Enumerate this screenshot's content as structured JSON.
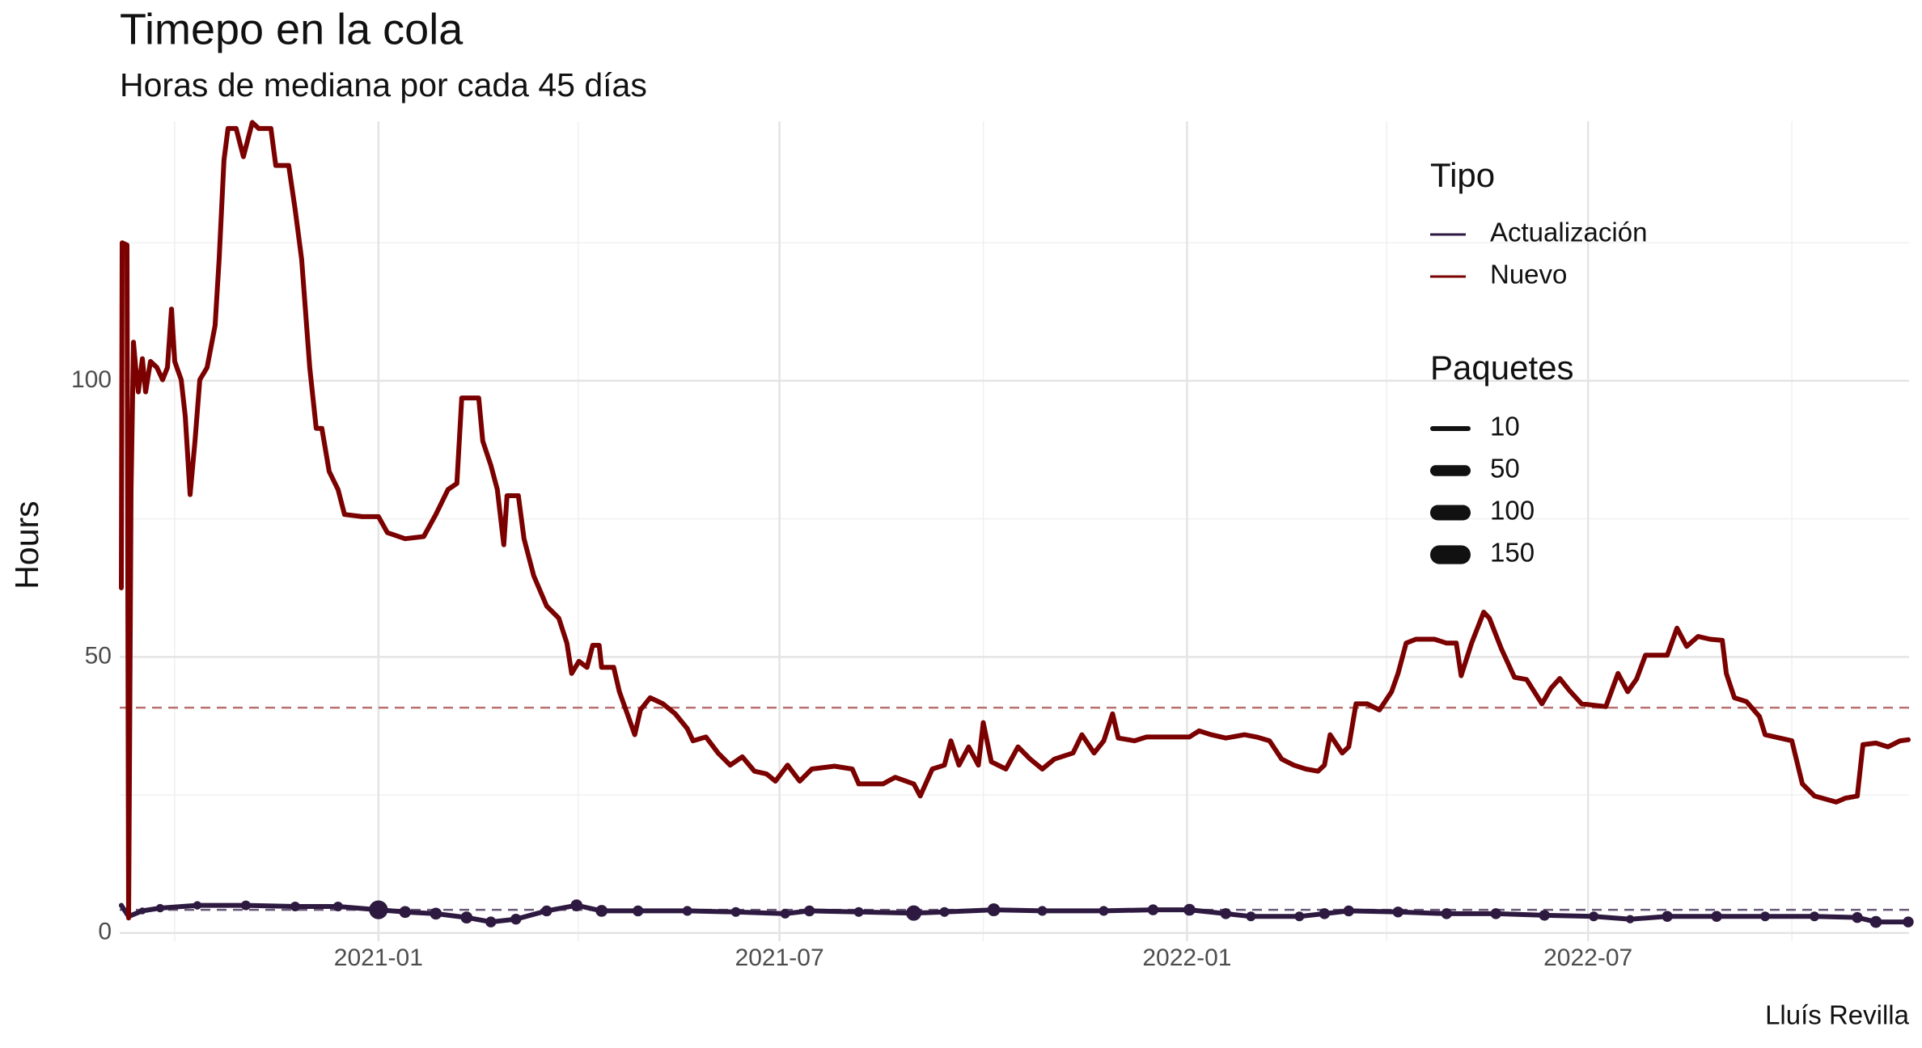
{
  "chart_data": {
    "type": "line",
    "title": "Timepo en la cola",
    "subtitle": "Horas de mediana por cada 45 días",
    "y_label": "Hours",
    "caption": "Lluís Revilla",
    "xlim": [
      2020.68,
      2022.893
    ],
    "xticks": [
      {
        "value": 2021.0,
        "label": "2021-01"
      },
      {
        "value": 2021.496,
        "label": "2021-07"
      },
      {
        "value": 2022.0,
        "label": "2022-01"
      },
      {
        "value": 2022.496,
        "label": "2022-07"
      }
    ],
    "xminor": [
      2020.748,
      2021.247,
      2021.748,
      2022.247,
      2022.748
    ],
    "ylim": [
      -1.5,
      147
    ],
    "yticks": [
      0,
      50,
      100
    ],
    "yminor": [
      25,
      75,
      125
    ],
    "grid": true,
    "legend_title": "Tipo",
    "size_legend": {
      "title": "Paquetes",
      "values": [
        10,
        50,
        100,
        150
      ]
    },
    "reference_lines": [
      {
        "value": 40.8,
        "color": "#b87070"
      },
      {
        "value": 4.2,
        "color": "#6a5a78"
      }
    ],
    "series": [
      {
        "name": "Actualización",
        "color": "#2e1a40",
        "x": [
          2020.682,
          2020.691,
          2020.708,
          2020.73,
          2020.776,
          2020.836,
          2020.897,
          2020.95,
          2021.0,
          2021.033,
          2021.071,
          2021.109,
          2021.139,
          2021.17,
          2021.208,
          2021.245,
          2021.276,
          2021.321,
          2021.382,
          2021.442,
          2021.503,
          2021.533,
          2021.594,
          2021.662,
          2021.7,
          2021.761,
          2021.821,
          2021.897,
          2021.958,
          2022.003,
          2022.048,
          2022.079,
          2022.139,
          2022.17,
          2022.2,
          2022.261,
          2022.321,
          2022.382,
          2022.442,
          2022.503,
          2022.548,
          2022.594,
          2022.655,
          2022.715,
          2022.776,
          2022.829,
          2022.852,
          2022.892
        ],
        "values": [
          5,
          3,
          4,
          4.5,
          5,
          5,
          4.8,
          4.8,
          4.2,
          3.8,
          3.5,
          2.8,
          2,
          2.5,
          4,
          5,
          4,
          4,
          4,
          3.8,
          3.5,
          4,
          3.8,
          3.6,
          3.8,
          4.2,
          4,
          4,
          4.2,
          4.2,
          3.5,
          3,
          3,
          3.5,
          4,
          3.8,
          3.5,
          3.5,
          3.2,
          3,
          2.5,
          3,
          3,
          3,
          3,
          2.8,
          2,
          2
        ],
        "sizes": [
          10,
          10,
          20,
          30,
          30,
          40,
          40,
          40,
          150,
          60,
          60,
          60,
          50,
          50,
          50,
          60,
          60,
          50,
          40,
          40,
          40,
          50,
          40,
          100,
          40,
          70,
          40,
          40,
          50,
          60,
          50,
          40,
          40,
          50,
          50,
          50,
          50,
          50,
          50,
          40,
          30,
          50,
          50,
          40,
          40,
          50,
          60,
          50
        ]
      },
      {
        "name": "Nuevo",
        "color": "#7b0000",
        "x": [
          2020.682,
          2020.683,
          2020.689,
          2020.691,
          2020.694,
          2020.697,
          2020.7,
          2020.703,
          2020.708,
          2020.712,
          2020.718,
          2020.726,
          2020.733,
          2020.739,
          2020.744,
          2020.748,
          2020.756,
          2020.761,
          2020.767,
          2020.773,
          2020.779,
          2020.788,
          2020.798,
          2020.803,
          2020.809,
          2020.814,
          2020.824,
          2020.833,
          2020.844,
          2020.852,
          2020.867,
          2020.873,
          2020.889,
          2020.897,
          2020.905,
          2020.915,
          2020.923,
          2020.93,
          2020.939,
          2020.95,
          2020.958,
          2020.98,
          2021.0,
          2021.011,
          2021.033,
          2021.056,
          2021.071,
          2021.086,
          2021.097,
          2021.103,
          2021.124,
          2021.129,
          2021.139,
          2021.147,
          2021.155,
          2021.159,
          2021.173,
          2021.18,
          2021.192,
          2021.208,
          2021.223,
          2021.233,
          2021.239,
          2021.248,
          2021.258,
          2021.265,
          2021.273,
          2021.276,
          2021.291,
          2021.298,
          2021.309,
          2021.317,
          2021.324,
          2021.336,
          2021.352,
          2021.367,
          2021.382,
          2021.389,
          2021.405,
          2021.42,
          2021.435,
          2021.45,
          2021.465,
          2021.48,
          2021.491,
          2021.506,
          2021.521,
          2021.536,
          2021.564,
          2021.586,
          2021.594,
          2021.624,
          2021.639,
          2021.662,
          2021.67,
          2021.685,
          2021.7,
          2021.708,
          2021.718,
          2021.73,
          2021.742,
          2021.748,
          2021.758,
          2021.776,
          2021.791,
          2021.806,
          2021.821,
          2021.836,
          2021.859,
          2021.87,
          2021.885,
          2021.897,
          2021.908,
          2021.915,
          2021.935,
          2021.95,
          2021.973,
          2022.003,
          2022.015,
          2022.03,
          2022.048,
          2022.071,
          2022.086,
          2022.102,
          2022.117,
          2022.132,
          2022.147,
          2022.162,
          2022.17,
          2022.177,
          2022.192,
          2022.2,
          2022.209,
          2022.223,
          2022.238,
          2022.253,
          2022.261,
          2022.271,
          2022.283,
          2022.306,
          2022.321,
          2022.333,
          2022.339,
          2022.352,
          2022.367,
          2022.374,
          2022.389,
          2022.405,
          2022.42,
          2022.439,
          2022.45,
          2022.461,
          2022.473,
          2022.488,
          2022.518,
          2022.533,
          2022.545,
          2022.556,
          2022.567,
          2022.594,
          2022.606,
          2022.618,
          2022.632,
          2022.647,
          2022.662,
          2022.667,
          2022.677,
          2022.692,
          2022.708,
          2022.715,
          2022.733,
          2022.748,
          2022.761,
          2022.776,
          2022.803,
          2022.814,
          2022.829,
          2022.836,
          2022.852,
          2022.867,
          2022.882,
          2022.892
        ],
        "values": [
          62.5,
          125,
          124.6,
          2.7,
          80,
          107,
          102,
          98,
          104,
          98,
          103.5,
          102.4,
          100.2,
          102.4,
          113,
          103.5,
          100.2,
          93.6,
          79.4,
          89,
          100.2,
          102.4,
          110,
          122,
          140,
          145.7,
          145.7,
          140.6,
          146.8,
          145.7,
          145.7,
          139,
          139,
          131,
          122,
          102.4,
          91.4,
          91.4,
          83.6,
          80.3,
          75.8,
          75.4,
          75.4,
          72.5,
          71.4,
          71.8,
          75.8,
          80.3,
          81.4,
          96.9,
          96.9,
          89.1,
          84.7,
          80.3,
          70.3,
          79.2,
          79.2,
          71.4,
          64.7,
          59.2,
          57,
          52.5,
          47,
          49.2,
          48.1,
          52.1,
          52.1,
          48.1,
          48.1,
          43.7,
          39.2,
          35.9,
          40.4,
          42.6,
          41.5,
          39.7,
          37,
          34.8,
          35.5,
          32.6,
          30.4,
          31.9,
          29.3,
          28.8,
          27.5,
          30.4,
          27.5,
          29.7,
          30.2,
          29.7,
          27,
          27,
          28.2,
          27,
          24.8,
          29.7,
          30.4,
          34.8,
          30.4,
          33.7,
          30.4,
          38.1,
          31,
          29.7,
          33.7,
          31.5,
          29.7,
          31.5,
          32.6,
          35.9,
          32.6,
          34.8,
          39.7,
          35.3,
          34.8,
          35.5,
          35.5,
          35.5,
          36.6,
          35.9,
          35.3,
          35.9,
          35.5,
          34.8,
          31.5,
          30.4,
          29.7,
          29.3,
          30.4,
          35.9,
          32.6,
          33.7,
          41.5,
          41.5,
          40.4,
          43.7,
          47,
          52.5,
          53.2,
          53.2,
          52.5,
          52.5,
          46.6,
          52.5,
          58.1,
          57,
          51.4,
          46.3,
          45.9,
          41.5,
          44.3,
          46.1,
          43.9,
          41.5,
          41,
          47,
          43.7,
          46,
          50.3,
          50.3,
          55.2,
          51.9,
          53.7,
          53.2,
          53,
          47,
          42.6,
          41.9,
          39.2,
          35.9,
          35.3,
          34.8,
          27,
          24.8,
          23.7,
          24.4,
          24.8,
          34.1,
          34.4,
          33.7,
          34.8,
          35
        ]
      }
    ]
  }
}
